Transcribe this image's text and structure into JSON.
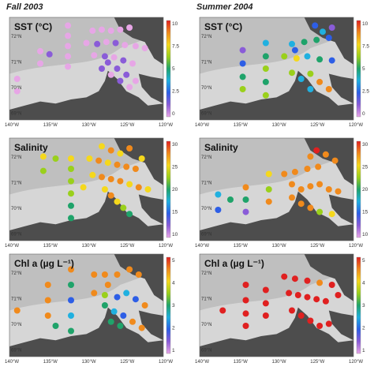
{
  "columns": [
    {
      "title": "Fall 2003"
    },
    {
      "title": "Summer 2004"
    }
  ],
  "rows": [
    {
      "variable": "SST (°C)",
      "colorbar": {
        "ticks": [
          "10",
          "7.5",
          "5",
          "2.5",
          "0"
        ],
        "range": [
          0,
          10
        ]
      }
    },
    {
      "variable": "Salinity",
      "colorbar": {
        "ticks": [
          "30",
          "25",
          "20",
          "15",
          "10"
        ],
        "range": [
          10,
          32
        ]
      }
    },
    {
      "variable": "Chl a (µg L⁻¹)",
      "colorbar": {
        "ticks": [
          "5",
          "4",
          "3",
          "2",
          "1"
        ],
        "range": [
          0,
          5
        ]
      }
    }
  ],
  "axes": {
    "lat_ticks": [
      "72°N",
      "71°N",
      "70°N",
      "69°N"
    ],
    "lon_ticks": [
      "140°W",
      "135°W",
      "130°W",
      "125°W",
      "120°W"
    ]
  },
  "colors": {
    "land": "#4d4d4d",
    "ocean_deep": "#bfbfbf",
    "ocean_shelf": "#dcdcdc",
    "colormap": [
      "#e7a6e6",
      "#8a5cd8",
      "#2d5ee6",
      "#20b0e0",
      "#1fa36a",
      "#9ad01b",
      "#f5d81c",
      "#f08a1c",
      "#e02020"
    ]
  },
  "map_data": {
    "fall_sst": [
      [
        0.38,
        0.08,
        0.3
      ],
      [
        0.38,
        0.18,
        0.5
      ],
      [
        0.38,
        0.28,
        0.6
      ],
      [
        0.38,
        0.38,
        0.4
      ],
      [
        0.38,
        0.48,
        0.3
      ],
      [
        0.54,
        0.13,
        0.5
      ],
      [
        0.6,
        0.12,
        0.4
      ],
      [
        0.66,
        0.13,
        0.6
      ],
      [
        0.72,
        0.12,
        0.4
      ],
      [
        0.78,
        0.1,
        0.5
      ],
      [
        0.5,
        0.25,
        0.6
      ],
      [
        0.57,
        0.26,
        0.8
      ],
      [
        0.63,
        0.24,
        0.5
      ],
      [
        0.69,
        0.25,
        0.7
      ],
      [
        0.75,
        0.27,
        0.5
      ],
      [
        0.82,
        0.28,
        0.4
      ],
      [
        0.88,
        0.3,
        0.3
      ],
      [
        0.55,
        0.37,
        0.4
      ],
      [
        0.62,
        0.38,
        0.9
      ],
      [
        0.68,
        0.39,
        0.6
      ],
      [
        0.74,
        0.42,
        0.8
      ],
      [
        0.8,
        0.45,
        0.5
      ],
      [
        0.6,
        0.5,
        0.9
      ],
      [
        0.66,
        0.56,
        0.6
      ],
      [
        0.72,
        0.62,
        0.7
      ],
      [
        0.78,
        0.68,
        0.5
      ],
      [
        0.64,
        0.44,
        1.0
      ],
      [
        0.7,
        0.5,
        0.7
      ],
      [
        0.76,
        0.56,
        1.1
      ],
      [
        0.82,
        0.62,
        0.6
      ],
      [
        0.2,
        0.33,
        0.6
      ],
      [
        0.26,
        0.36,
        0.7
      ],
      [
        0.2,
        0.45,
        0.5
      ],
      [
        0.05,
        0.6,
        0.4
      ],
      [
        0.05,
        0.72,
        0.4
      ]
    ],
    "summer_sst": [
      [
        0.43,
        0.25,
        3.5
      ],
      [
        0.43,
        0.38,
        5.0
      ],
      [
        0.43,
        0.5,
        6.5
      ],
      [
        0.43,
        0.63,
        5.5
      ],
      [
        0.43,
        0.76,
        6.5
      ],
      [
        0.6,
        0.26,
        3.5
      ],
      [
        0.68,
        0.24,
        5.5
      ],
      [
        0.76,
        0.22,
        4.5
      ],
      [
        0.84,
        0.2,
        3.0
      ],
      [
        0.55,
        0.38,
        6.8
      ],
      [
        0.63,
        0.4,
        7.8
      ],
      [
        0.7,
        0.38,
        3.5
      ],
      [
        0.78,
        0.41,
        4.8
      ],
      [
        0.86,
        0.42,
        3.0
      ],
      [
        0.6,
        0.54,
        6.5
      ],
      [
        0.66,
        0.6,
        3.5
      ],
      [
        0.72,
        0.55,
        6.8
      ],
      [
        0.78,
        0.63,
        9.2
      ],
      [
        0.84,
        0.7,
        8.5
      ],
      [
        0.75,
        0.08,
        2.5
      ],
      [
        0.8,
        0.14,
        3.2
      ],
      [
        0.86,
        0.1,
        1.5
      ],
      [
        0.72,
        0.7,
        3.5
      ],
      [
        0.28,
        0.32,
        1.5
      ],
      [
        0.28,
        0.45,
        3.0
      ],
      [
        0.28,
        0.58,
        4.5
      ],
      [
        0.28,
        0.7,
        6.5
      ],
      [
        0.62,
        0.32,
        2.0
      ]
    ],
    "fall_sal": [
      [
        0.4,
        0.2,
        26
      ],
      [
        0.4,
        0.3,
        25
      ],
      [
        0.4,
        0.42,
        23
      ],
      [
        0.4,
        0.54,
        23
      ],
      [
        0.4,
        0.66,
        21
      ],
      [
        0.4,
        0.78,
        22
      ],
      [
        0.52,
        0.2,
        27
      ],
      [
        0.58,
        0.22,
        28
      ],
      [
        0.64,
        0.24,
        27
      ],
      [
        0.7,
        0.26,
        28
      ],
      [
        0.76,
        0.28,
        29
      ],
      [
        0.82,
        0.3,
        28
      ],
      [
        0.54,
        0.36,
        27
      ],
      [
        0.6,
        0.38,
        28
      ],
      [
        0.66,
        0.4,
        29
      ],
      [
        0.72,
        0.42,
        28
      ],
      [
        0.78,
        0.45,
        27
      ],
      [
        0.84,
        0.48,
        28
      ],
      [
        0.9,
        0.5,
        27
      ],
      [
        0.62,
        0.5,
        27
      ],
      [
        0.66,
        0.56,
        28
      ],
      [
        0.7,
        0.62,
        26
      ],
      [
        0.74,
        0.68,
        24
      ],
      [
        0.78,
        0.74,
        22
      ],
      [
        0.6,
        0.08,
        27
      ],
      [
        0.66,
        0.12,
        28
      ],
      [
        0.72,
        0.15,
        27
      ],
      [
        0.78,
        0.1,
        28
      ],
      [
        0.86,
        0.2,
        27
      ],
      [
        0.22,
        0.18,
        26
      ],
      [
        0.22,
        0.32,
        25
      ],
      [
        0.3,
        0.2,
        24
      ],
      [
        0.48,
        0.48,
        27
      ]
    ],
    "summer_sal": [
      [
        0.45,
        0.35,
        26
      ],
      [
        0.45,
        0.5,
        25
      ],
      [
        0.45,
        0.62,
        30
      ],
      [
        0.55,
        0.35,
        30
      ],
      [
        0.62,
        0.33,
        30
      ],
      [
        0.7,
        0.3,
        30
      ],
      [
        0.77,
        0.28,
        30
      ],
      [
        0.6,
        0.45,
        29
      ],
      [
        0.66,
        0.5,
        30
      ],
      [
        0.72,
        0.47,
        30
      ],
      [
        0.78,
        0.45,
        28
      ],
      [
        0.84,
        0.5,
        29
      ],
      [
        0.9,
        0.52,
        30
      ],
      [
        0.6,
        0.58,
        30
      ],
      [
        0.66,
        0.64,
        30
      ],
      [
        0.72,
        0.68,
        29
      ],
      [
        0.78,
        0.72,
        24
      ],
      [
        0.86,
        0.74,
        27
      ],
      [
        0.76,
        0.12,
        31
      ],
      [
        0.82,
        0.16,
        30
      ],
      [
        0.88,
        0.22,
        28
      ],
      [
        0.72,
        0.18,
        30
      ],
      [
        0.3,
        0.48,
        28
      ],
      [
        0.3,
        0.6,
        22
      ],
      [
        0.3,
        0.72,
        12
      ],
      [
        0.12,
        0.55,
        18
      ],
      [
        0.12,
        0.7,
        15
      ],
      [
        0.2,
        0.6,
        20
      ]
    ],
    "fall_chl": [
      [
        0.4,
        0.15,
        4.2
      ],
      [
        0.4,
        0.3,
        2.5
      ],
      [
        0.4,
        0.45,
        1.2
      ],
      [
        0.4,
        0.6,
        1.6
      ],
      [
        0.4,
        0.75,
        2.2
      ],
      [
        0.55,
        0.2,
        4.5
      ],
      [
        0.62,
        0.2,
        4.4
      ],
      [
        0.7,
        0.2,
        4.3
      ],
      [
        0.78,
        0.15,
        4.4
      ],
      [
        0.84,
        0.2,
        4.3
      ],
      [
        0.55,
        0.38,
        4.4
      ],
      [
        0.62,
        0.4,
        3.4
      ],
      [
        0.7,
        0.42,
        1.1
      ],
      [
        0.76,
        0.38,
        2.0
      ],
      [
        0.82,
        0.44,
        1.5
      ],
      [
        0.88,
        0.5,
        4.4
      ],
      [
        0.62,
        0.5,
        2.4
      ],
      [
        0.68,
        0.56,
        1.8
      ],
      [
        0.74,
        0.6,
        1.5
      ],
      [
        0.8,
        0.66,
        4.2
      ],
      [
        0.86,
        0.72,
        4.3
      ],
      [
        0.64,
        0.3,
        4.4
      ],
      [
        0.66,
        0.66,
        2.6
      ],
      [
        0.72,
        0.7,
        2.2
      ],
      [
        0.25,
        0.3,
        4.6
      ],
      [
        0.25,
        0.45,
        4.5
      ],
      [
        0.25,
        0.6,
        4.6
      ],
      [
        0.3,
        0.7,
        2.4
      ],
      [
        0.05,
        0.55,
        4.5
      ]
    ],
    "summer_chl": [
      [
        0.43,
        0.35,
        4.8
      ],
      [
        0.43,
        0.48,
        4.7
      ],
      [
        0.43,
        0.6,
        4.9
      ],
      [
        0.55,
        0.22,
        4.8
      ],
      [
        0.62,
        0.24,
        4.7
      ],
      [
        0.7,
        0.26,
        4.8
      ],
      [
        0.78,
        0.28,
        4.6
      ],
      [
        0.58,
        0.38,
        4.9
      ],
      [
        0.64,
        0.4,
        4.7
      ],
      [
        0.7,
        0.42,
        4.8
      ],
      [
        0.76,
        0.44,
        4.9
      ],
      [
        0.82,
        0.46,
        4.8
      ],
      [
        0.6,
        0.55,
        4.9
      ],
      [
        0.66,
        0.6,
        4.7
      ],
      [
        0.72,
        0.65,
        4.8
      ],
      [
        0.78,
        0.7,
        4.7
      ],
      [
        0.84,
        0.68,
        4.9
      ],
      [
        0.3,
        0.3,
        4.8
      ],
      [
        0.3,
        0.45,
        4.9
      ],
      [
        0.3,
        0.58,
        4.7
      ],
      [
        0.3,
        0.7,
        4.8
      ],
      [
        0.15,
        0.55,
        4.7
      ],
      [
        0.86,
        0.3,
        4.8
      ],
      [
        0.9,
        0.4,
        4.7
      ]
    ]
  }
}
